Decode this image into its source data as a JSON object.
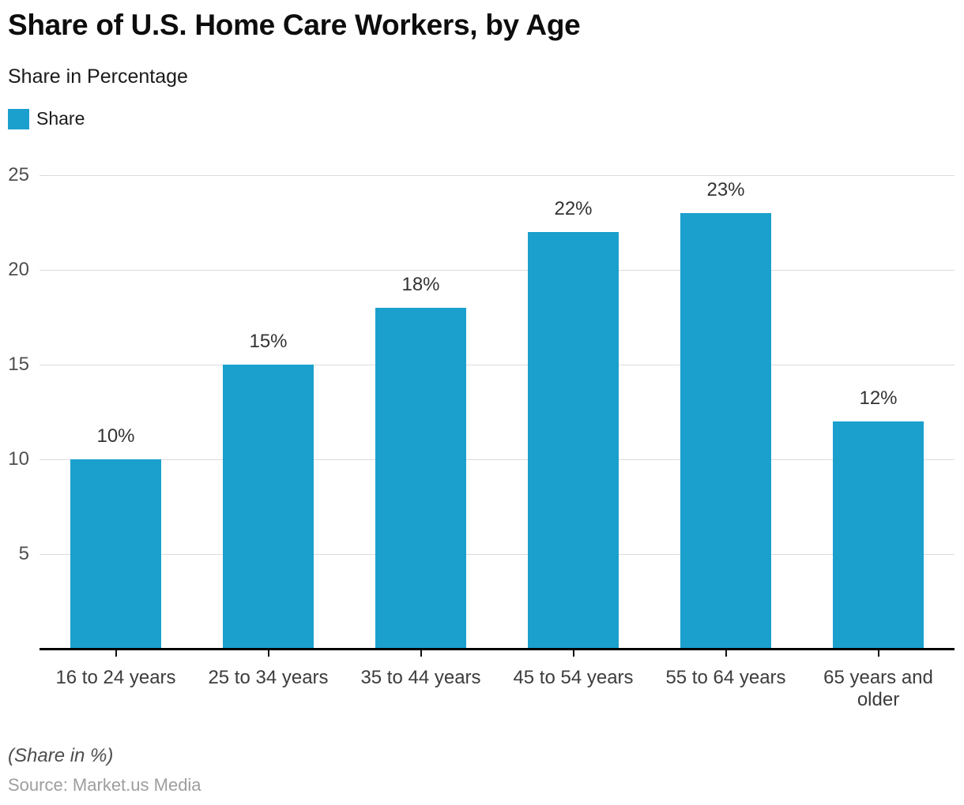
{
  "header": {
    "title": "Share of U.S. Home Care Workers, by Age",
    "subtitle": "Share in Percentage"
  },
  "legend": {
    "label": "Share",
    "swatch_color": "#1ba0cd"
  },
  "chart_data": {
    "type": "bar",
    "title": "Share of U.S. Home Care Workers, by Age",
    "subtitle": "Share in Percentage",
    "series_name": "Share",
    "categories": [
      "16 to 24 years",
      "25 to 34 years",
      "35 to 44 years",
      "45 to 54 years",
      "55 to 64 years",
      "65 years and older"
    ],
    "values": [
      10,
      15,
      18,
      22,
      23,
      12
    ],
    "value_labels": [
      "10%",
      "15%",
      "18%",
      "22%",
      "23%",
      "12%"
    ],
    "xlabel": "",
    "ylabel": "Share in Percentage",
    "ylim": [
      0,
      25
    ],
    "yticks": [
      5,
      10,
      15,
      20,
      25
    ],
    "grid": "horizontal-only",
    "legend_position": "top-left",
    "bar_color": "#1ba0cd"
  },
  "footer": {
    "note": "(Share in %)",
    "source": "Source: Market.us Media"
  },
  "colors": {
    "bar": "#1ba0cd",
    "gridline": "#dbdbdb",
    "axis_line": "#000000",
    "y_tick_label": "#4f4f4f",
    "x_tick_label": "#3c3c3c",
    "value_label": "#333333",
    "title": "#0d0d0d",
    "source": "#9e9e9e"
  }
}
